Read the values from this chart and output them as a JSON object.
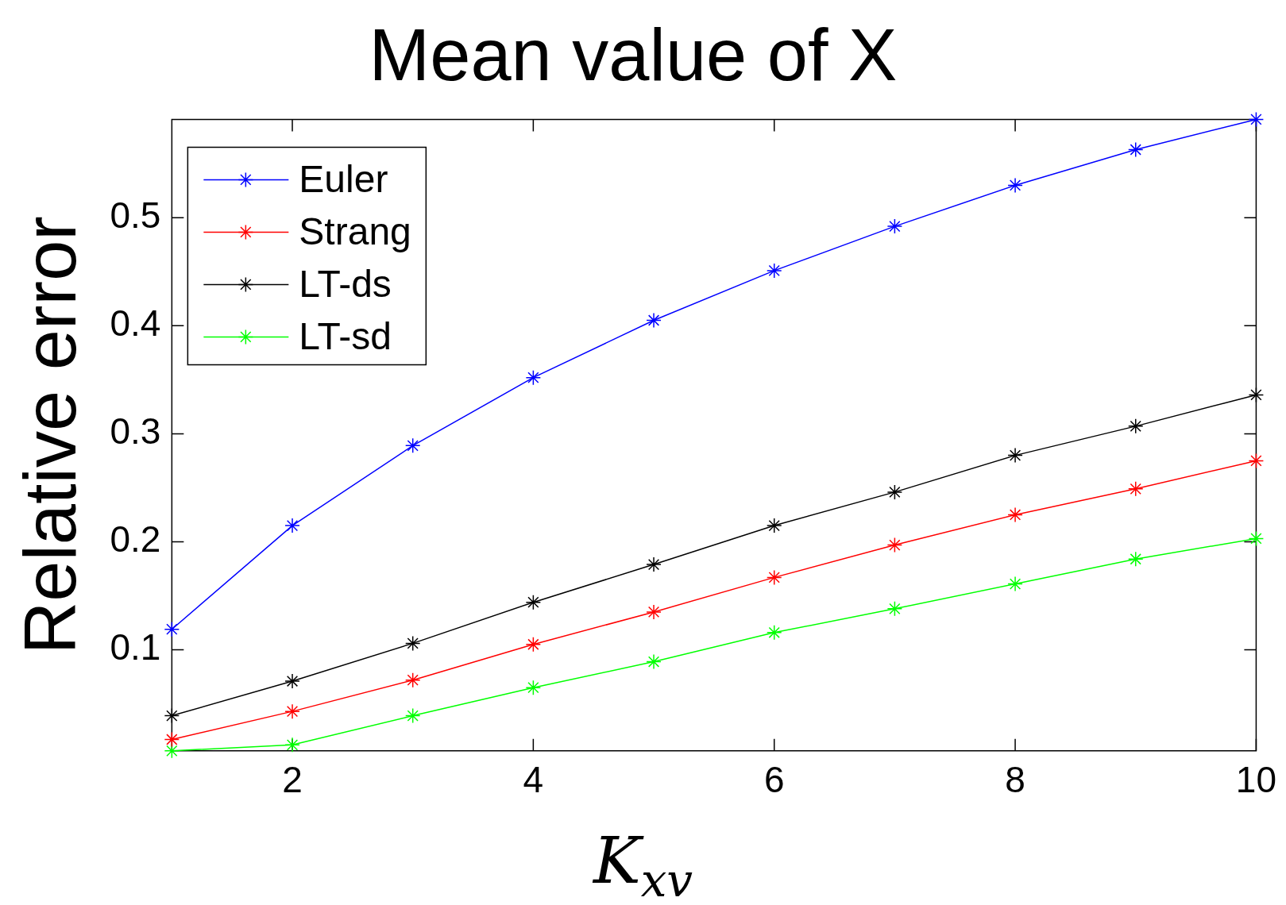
{
  "chart_data": {
    "type": "line",
    "title": "Mean value of X",
    "xlabel": "K$_{xv}$",
    "ylabel": "Relative error",
    "x": [
      1,
      2,
      3,
      4,
      5,
      6,
      7,
      8,
      9,
      10
    ],
    "series": [
      {
        "name": "Euler",
        "color": "#0000ff",
        "values": [
          0.119,
          0.215,
          0.289,
          0.352,
          0.405,
          0.451,
          0.492,
          0.53,
          0.563,
          0.591
        ]
      },
      {
        "name": "Strang",
        "color": "#ff0000",
        "values": [
          0.017,
          0.043,
          0.072,
          0.105,
          0.135,
          0.167,
          0.197,
          0.225,
          0.249,
          0.275
        ]
      },
      {
        "name": "LT-ds",
        "color": "#000000",
        "values": [
          0.039,
          0.071,
          0.106,
          0.144,
          0.179,
          0.215,
          0.246,
          0.28,
          0.307,
          0.336
        ]
      },
      {
        "name": "LT-sd",
        "color": "#00ff00",
        "values": [
          0.0065,
          0.012,
          0.039,
          0.065,
          0.089,
          0.116,
          0.138,
          0.161,
          0.184,
          0.203
        ]
      }
    ],
    "xlim": [
      1,
      10
    ],
    "xticks": [
      2,
      4,
      6,
      8,
      10
    ],
    "ylim": [
      0.0065,
      0.591
    ],
    "yticks": [
      0.1,
      0.2,
      0.3,
      0.4,
      0.5
    ],
    "grid": false,
    "legend": "top left",
    "marker": "cross",
    "line_style": "solid"
  }
}
